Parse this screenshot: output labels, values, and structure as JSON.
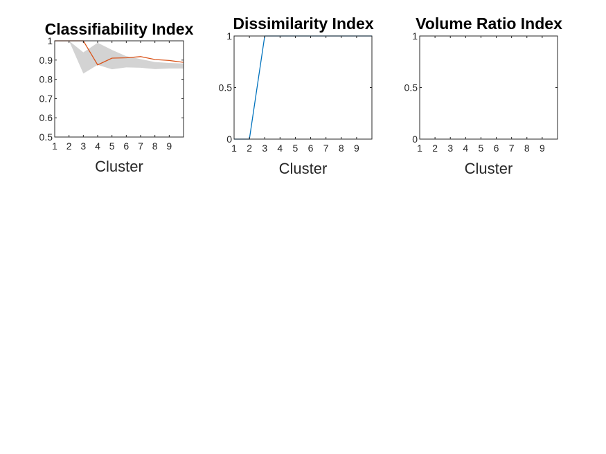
{
  "chart_data": [
    {
      "type": "line",
      "title": "Classifiability Index",
      "xlabel": "Cluster",
      "ylabel": "",
      "xlim": [
        1,
        10
      ],
      "ylim": [
        0.5,
        1
      ],
      "xticks": [
        "1",
        "2",
        "3",
        "4",
        "5",
        "6",
        "7",
        "8",
        "9"
      ],
      "yticks": [
        "0.5",
        "0.6",
        "0.7",
        "0.8",
        "0.9",
        "1"
      ],
      "band": {
        "x": [
          1,
          2,
          3,
          4,
          5,
          6,
          7,
          8,
          9,
          10
        ],
        "lower": [
          1.0,
          1.0,
          0.83,
          0.875,
          0.852,
          0.862,
          0.86,
          0.853,
          0.856,
          0.856
        ],
        "upper": [
          1.0,
          1.0,
          0.94,
          0.99,
          0.953,
          0.92,
          0.905,
          0.89,
          0.885,
          0.882
        ]
      },
      "series": [
        {
          "x": [
            1,
            2,
            3,
            4,
            5,
            6,
            7,
            8,
            9,
            10
          ],
          "values": [
            1.0,
            1.0,
            1.0,
            0.875,
            0.91,
            0.912,
            0.918,
            0.903,
            0.898,
            0.888
          ]
        }
      ],
      "colors": {
        "line": "#d95319",
        "band": "#d3d3d3"
      },
      "grid": false
    },
    {
      "type": "line",
      "title": "Dissimilarity Index",
      "xlabel": "Cluster",
      "ylabel": "",
      "xlim": [
        1,
        10
      ],
      "ylim": [
        0,
        1
      ],
      "xticks": [
        "1",
        "2",
        "3",
        "4",
        "5",
        "6",
        "7",
        "8",
        "9"
      ],
      "yticks": [
        "0",
        "0.5",
        "1"
      ],
      "series": [
        {
          "x": [
            1,
            2,
            3,
            4,
            5,
            6,
            7,
            8,
            9,
            10
          ],
          "values": [
            0,
            0,
            1,
            1,
            1,
            1,
            1,
            1,
            1,
            1
          ]
        }
      ],
      "colors": {
        "line": "#0072bd"
      },
      "grid": false
    },
    {
      "type": "line",
      "title": "Volume Ratio Index",
      "xlabel": "Cluster",
      "ylabel": "",
      "xlim": [
        1,
        10
      ],
      "ylim": [
        0,
        1
      ],
      "xticks": [
        "1",
        "2",
        "3",
        "4",
        "5",
        "6",
        "7",
        "8",
        "9"
      ],
      "yticks": [
        "0",
        "0.5",
        "1"
      ],
      "series": [],
      "grid": false
    }
  ]
}
